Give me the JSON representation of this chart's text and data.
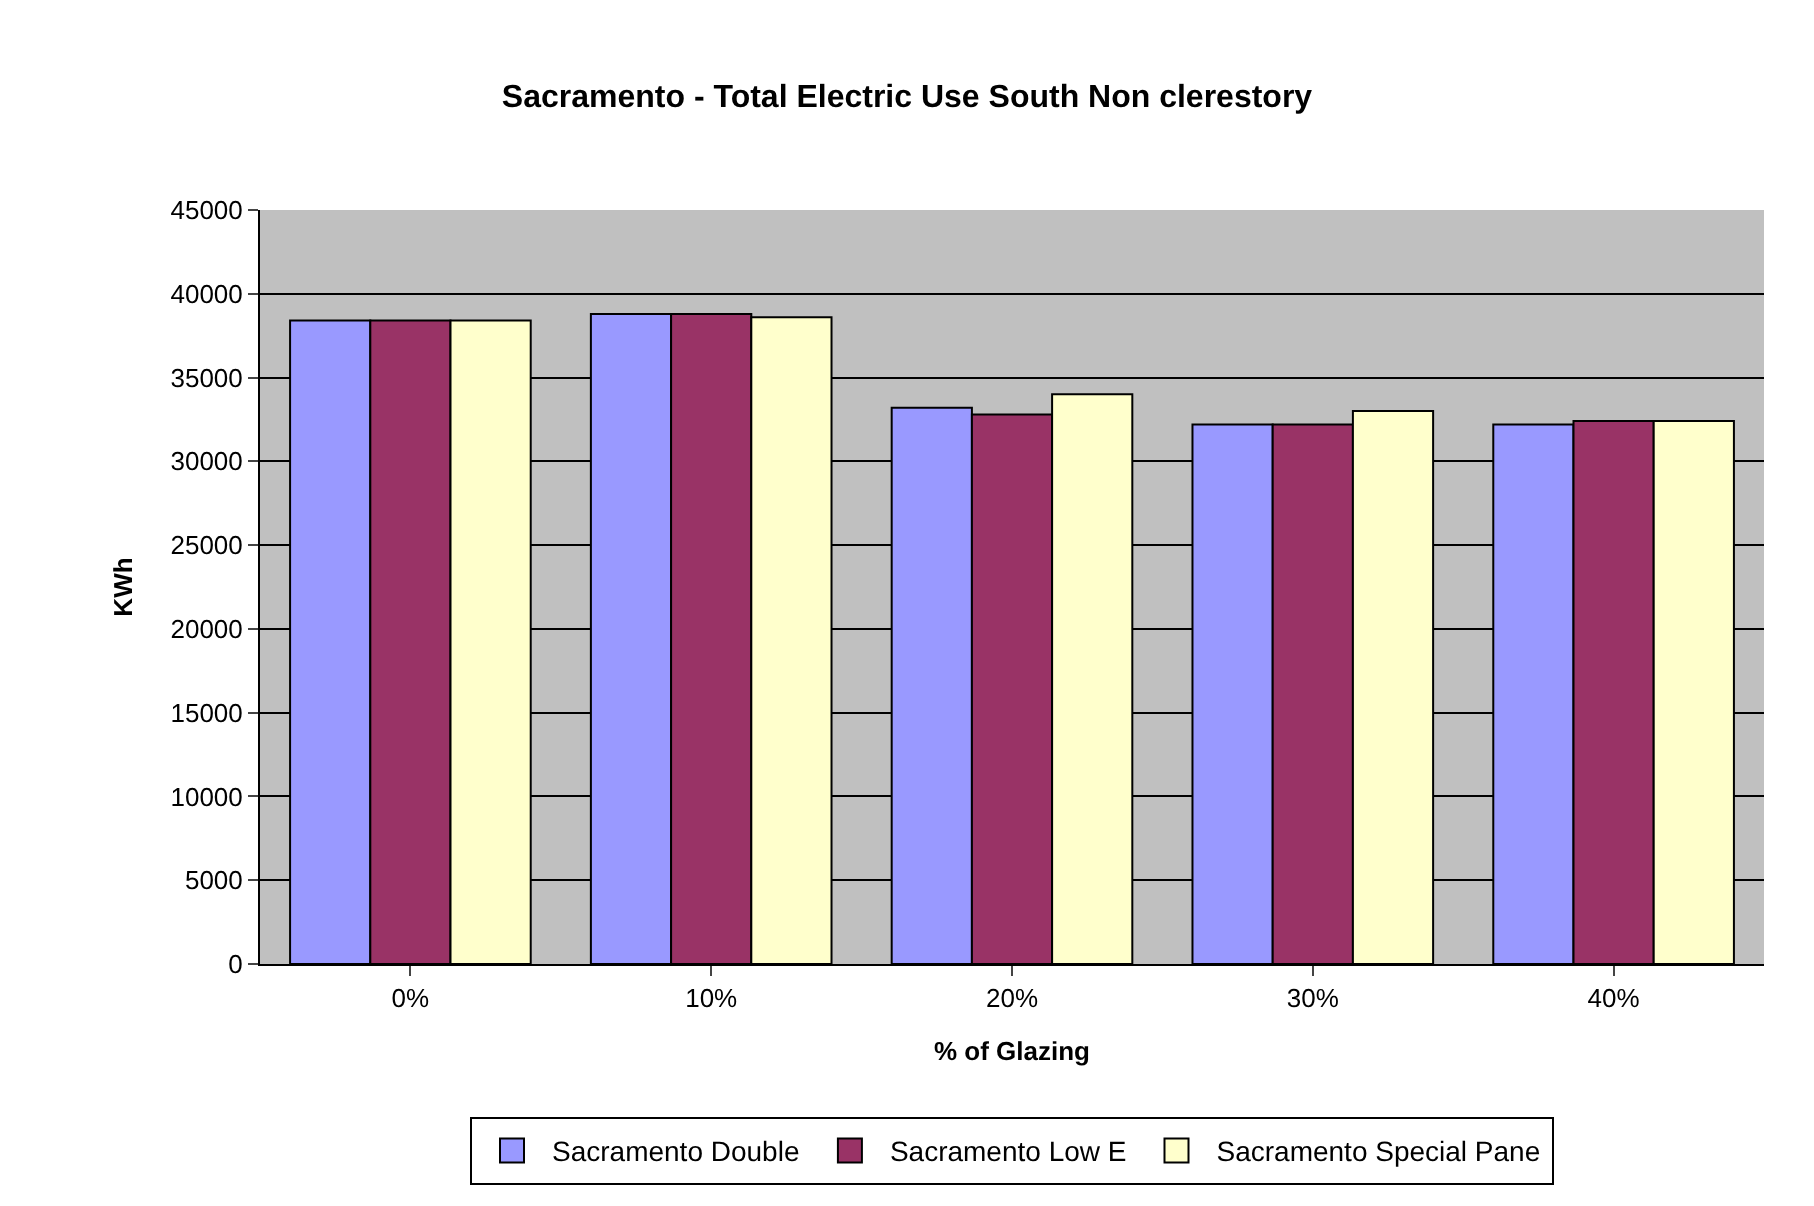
{
  "chart_data": {
    "type": "bar",
    "title": "Sacramento - Total Electric Use South Non clerestory",
    "xlabel": "% of Glazing",
    "ylabel": "KWh",
    "categories": [
      "0%",
      "10%",
      "20%",
      "30%",
      "40%"
    ],
    "series": [
      {
        "name": "Sacramento Double",
        "color": "#9999ff",
        "values": [
          38400,
          38800,
          33200,
          32200,
          32200
        ]
      },
      {
        "name": "Sacramento Low E",
        "color": "#993366",
        "values": [
          38400,
          38800,
          32800,
          32200,
          32400
        ]
      },
      {
        "name": "Sacramento Special Pane",
        "color": "#ffffcc",
        "values": [
          38400,
          38600,
          34000,
          33000,
          32400
        ]
      }
    ],
    "ylim": [
      0,
      45000
    ],
    "yticks": [
      0,
      5000,
      10000,
      15000,
      20000,
      25000,
      30000,
      35000,
      40000,
      45000
    ],
    "grid": "y",
    "legend": "bottom"
  }
}
